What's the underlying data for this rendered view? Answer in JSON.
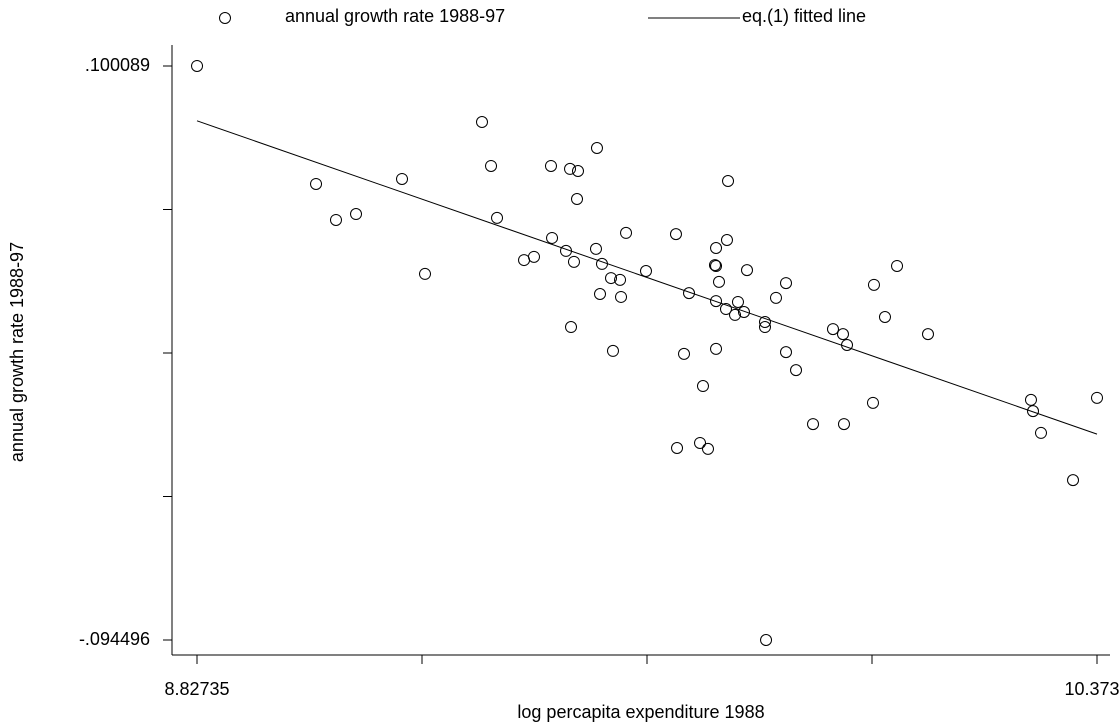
{
  "chart_data": {
    "type": "scatter",
    "xlabel": "log percapita expenditure 1988",
    "ylabel": "annual growth rate 1988-97",
    "xlim": [
      8.82735,
      10.3733
    ],
    "ylim": [
      -0.094496,
      0.100089
    ],
    "xticks": [
      8.82735,
      {
        "value": 9.2138375,
        "label": null
      },
      {
        "value": 9.600325,
        "label": null
      },
      {
        "value": 9.9868125,
        "label": null
      },
      10.3733
    ],
    "yticks": [
      {
        "value": -0.094496,
        "label": "-.094496"
      },
      {
        "value": -0.04584975,
        "label": null
      },
      {
        "value": 0.0027965,
        "label": null
      },
      {
        "value": 0.05144275,
        "label": null
      },
      {
        "value": 0.100089,
        "label": ".100089"
      }
    ],
    "legend": "top",
    "series": [
      {
        "name": "annual growth rate 1988-97",
        "type": "scatter",
        "color": "#000000",
        "x": [
          8.8274,
          9.0318,
          9.0661,
          9.1005,
          9.1795,
          9.219,
          9.3169,
          9.3324,
          9.3427,
          9.3891,
          9.4062,
          9.4354,
          9.4372,
          9.4612,
          9.4681,
          9.4818,
          9.4698,
          9.4749,
          9.4801,
          9.5144,
          9.5127,
          9.5196,
          9.523,
          9.5385,
          9.5419,
          9.554,
          9.5557,
          9.5643,
          9.5986,
          9.6501,
          9.6519,
          9.6639,
          9.6725,
          9.6914,
          9.6965,
          9.7051,
          9.7171,
          9.7189,
          9.7189,
          9.7189,
          9.7189,
          9.724,
          9.7377,
          9.736,
          9.7395,
          9.7515,
          9.7566,
          9.7669,
          9.7721,
          9.803,
          9.803,
          9.8048,
          9.8219,
          9.8391,
          9.8391,
          9.8563,
          9.8855,
          9.9198,
          9.937,
          9.9387,
          9.9439,
          9.9885,
          9.9902,
          10.0091,
          10.0298,
          10.083,
          10.2599,
          10.2634,
          10.2771,
          10.3321,
          10.3733
        ],
        "values": [
          0.1001,
          0.0601,
          0.0479,
          0.0499,
          0.0618,
          0.0296,
          0.0811,
          0.0662,
          0.0486,
          0.0343,
          0.0354,
          0.0662,
          0.0418,
          0.0374,
          0.0652,
          0.0645,
          0.0116,
          0.0337,
          0.055,
          0.0723,
          0.0381,
          0.0228,
          0.033,
          0.0282,
          0.0035,
          0.0276,
          0.0218,
          0.0435,
          0.0306,
          0.0431,
          -0.0294,
          0.0025,
          0.0231,
          -0.0277,
          -0.0084,
          -0.0297,
          0.0326,
          0.0384,
          0.0204,
          0.0042,
          0.0323,
          0.0269,
          0.0411,
          0.0177,
          0.0611,
          0.0157,
          0.0201,
          0.0167,
          0.0309,
          0.0133,
          0.0116,
          -0.0945,
          0.0215,
          0.0031,
          0.0265,
          -0.003,
          -0.0213,
          0.0109,
          0.0092,
          -0.0213,
          0.0055,
          -0.0141,
          0.0259,
          0.015,
          0.0323,
          0.0092,
          -0.0131,
          -0.0169,
          -0.0243,
          -0.0403,
          -0.0124
        ]
      },
      {
        "name": "eq.(1) fitted line",
        "type": "line",
        "color": "#000000",
        "x": [
          8.82735,
          10.3733
        ],
        "values": [
          0.0815,
          -0.0247
        ]
      }
    ]
  }
}
